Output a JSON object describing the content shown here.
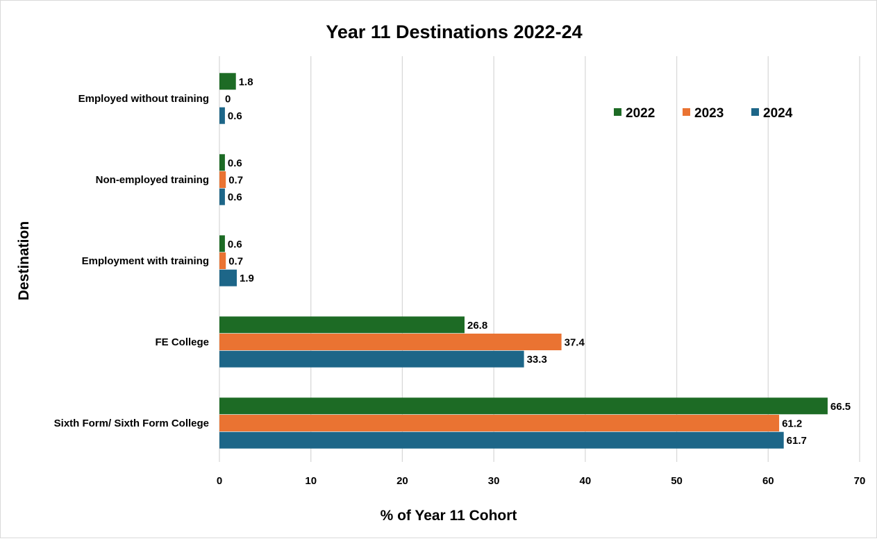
{
  "chart_data": {
    "type": "bar",
    "orientation": "horizontal",
    "title": "Year 11 Destinations 2022-24",
    "xlabel": "% of Year 11 Cohort",
    "ylabel": "Destination",
    "xlim": [
      0,
      70
    ],
    "xticks": [
      0,
      10,
      20,
      30,
      40,
      50,
      60,
      70
    ],
    "grid": true,
    "legend_position": "top-right",
    "categories": [
      "Employed without training",
      "Non-employed training",
      "Employment with training",
      "FE College",
      "Sixth Form/ Sixth Form College"
    ],
    "series": [
      {
        "name": "2022",
        "color": "#1d6b25",
        "values": [
          1.8,
          0.6,
          0.6,
          26.8,
          66.5
        ]
      },
      {
        "name": "2023",
        "color": "#ea7332",
        "values": [
          0,
          0.7,
          0.7,
          37.4,
          61.2
        ]
      },
      {
        "name": "2024",
        "color": "#1d6688",
        "values": [
          0.6,
          0.6,
          1.9,
          33.3,
          61.7
        ]
      }
    ]
  }
}
